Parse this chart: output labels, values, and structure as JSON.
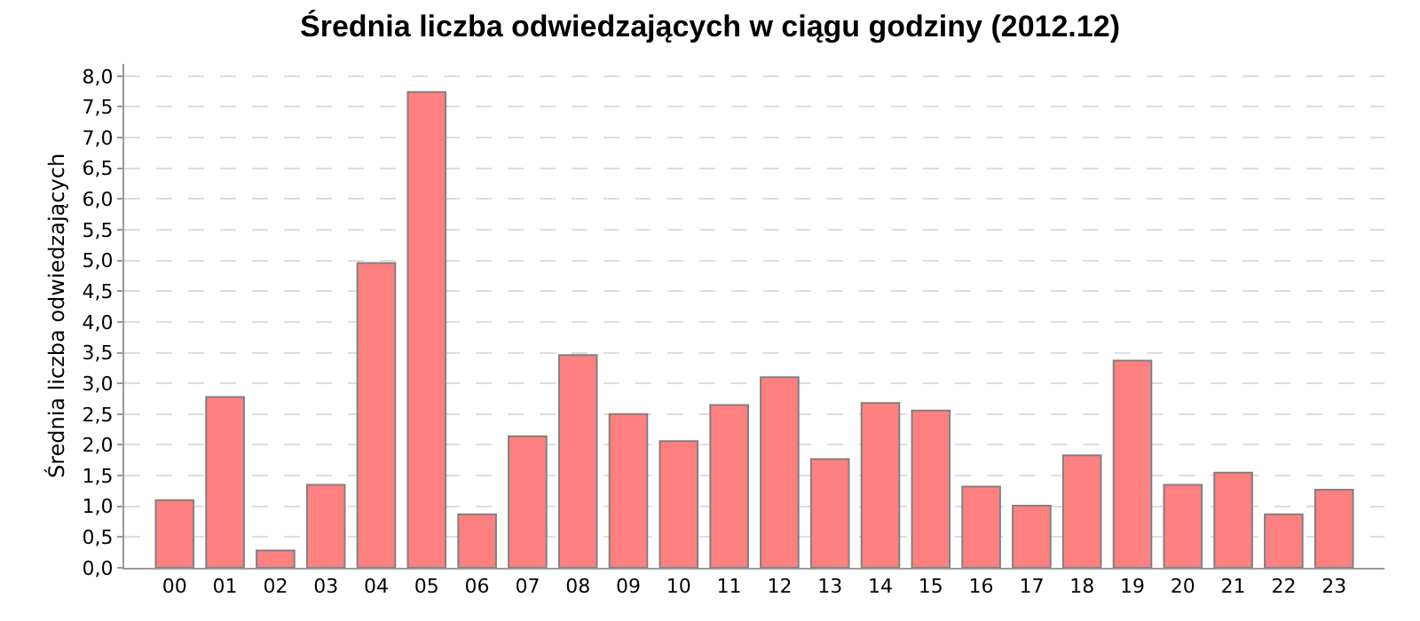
{
  "chart_data": {
    "type": "bar",
    "title": "Średnia liczba odwiedzających w ciągu godziny (2012.12)",
    "ylabel": "Średnia liczba odwiedzających",
    "categories": [
      "00",
      "01",
      "02",
      "03",
      "04",
      "05",
      "06",
      "07",
      "08",
      "09",
      "10",
      "11",
      "12",
      "13",
      "14",
      "15",
      "16",
      "17",
      "18",
      "19",
      "20",
      "21",
      "22",
      "23"
    ],
    "values": [
      1.1,
      2.78,
      0.28,
      1.35,
      4.96,
      7.74,
      0.87,
      2.14,
      3.46,
      2.5,
      2.06,
      2.65,
      3.1,
      1.77,
      2.68,
      2.56,
      1.32,
      1.01,
      1.83,
      3.37,
      1.35,
      1.55,
      0.87,
      1.27
    ],
    "color": "#ff8080",
    "ylim": [
      0,
      8.2
    ],
    "yticks": [
      {
        "value": 0,
        "label": "0,0"
      },
      {
        "value": 0.5,
        "label": "0,5"
      },
      {
        "value": 1,
        "label": "1,0"
      },
      {
        "value": 1.5,
        "label": "1,5"
      },
      {
        "value": 2,
        "label": "2,0"
      },
      {
        "value": 2.5,
        "label": "2,5"
      },
      {
        "value": 3,
        "label": "3,0"
      },
      {
        "value": 3.5,
        "label": "3,5"
      },
      {
        "value": 4,
        "label": "4,0"
      },
      {
        "value": 4.5,
        "label": "4,5"
      },
      {
        "value": 5,
        "label": "5,0"
      },
      {
        "value": 5.5,
        "label": "5,5"
      },
      {
        "value": 6,
        "label": "6,0"
      },
      {
        "value": 6.5,
        "label": "6,5"
      },
      {
        "value": 7,
        "label": "7,0"
      },
      {
        "value": 7.5,
        "label": "7,5"
      },
      {
        "value": 8,
        "label": "8,0"
      }
    ],
    "grid": "y"
  }
}
